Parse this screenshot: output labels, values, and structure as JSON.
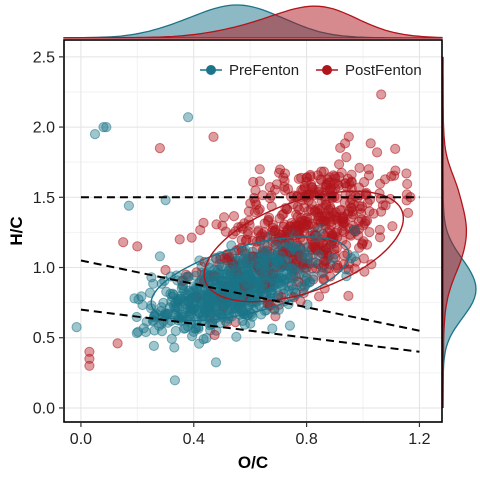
{
  "chart_data": {
    "type": "scatter",
    "xlabel": "O/C",
    "ylabel": "H/C",
    "xlim": [
      -0.06,
      1.28
    ],
    "ylim": [
      -0.1,
      2.62
    ],
    "xticks": [
      0.0,
      0.4,
      0.8,
      1.2
    ],
    "yticks": [
      0.0,
      0.5,
      1.0,
      1.5,
      2.0,
      2.5
    ],
    "x_tick_labels": [
      "0.0",
      "0.4",
      "0.8",
      "1.2"
    ],
    "y_tick_labels": [
      "0.0",
      "0.5",
      "1.0",
      "1.5",
      "2.0",
      "2.5"
    ],
    "grid": true,
    "legend_position": "top-right",
    "marginal_density": "top and right",
    "series": [
      {
        "name": "PreFenton",
        "color": "#1b7489",
        "center": [
          0.55,
          0.85
        ],
        "spread": [
          0.14,
          0.15
        ],
        "correlation": 0.55,
        "ellipse": {
          "center": [
            0.6,
            0.92
          ],
          "semi_axes": [
            0.41,
            0.21
          ],
          "angle_deg": 37
        },
        "approx_points": 700,
        "sample_points": [
          [
            0.05,
            1.95
          ],
          [
            0.08,
            2.0
          ],
          [
            0.09,
            2.0
          ],
          [
            0.38,
            2.07
          ],
          [
            0.3,
            1.48
          ],
          [
            0.17,
            1.44
          ],
          [
            0.28,
            1.08
          ],
          [
            0.25,
            0.93
          ],
          [
            0.32,
            0.62
          ],
          [
            0.45,
            0.8
          ],
          [
            0.5,
            0.9
          ],
          [
            0.55,
            1.0
          ],
          [
            0.6,
            0.85
          ],
          [
            0.52,
            0.7
          ],
          [
            0.65,
            1.1
          ],
          [
            0.7,
            1.2
          ],
          [
            0.42,
            1.05
          ],
          [
            0.48,
            0.55
          ],
          [
            0.6,
            0.6
          ],
          [
            0.72,
            0.9
          ]
        ]
      },
      {
        "name": "PostFenton",
        "color": "#b0151c",
        "center": [
          0.8,
          1.28
        ],
        "spread": [
          0.16,
          0.25
        ],
        "correlation": 0.45,
        "ellipse": {
          "center": [
            0.79,
            1.15
          ],
          "semi_axes": [
            0.46,
            0.26
          ],
          "angle_deg": 51
        },
        "approx_points": 550,
        "sample_points": [
          [
            0.03,
            0.3
          ],
          [
            0.03,
            0.35
          ],
          [
            0.03,
            0.4
          ],
          [
            0.13,
            0.46
          ],
          [
            0.28,
            1.85
          ],
          [
            0.35,
            1.2
          ],
          [
            0.15,
            1.18
          ],
          [
            0.2,
            1.15
          ],
          [
            0.47,
            1.93
          ],
          [
            1.05,
            1.82
          ],
          [
            1.1,
            1.65
          ],
          [
            0.8,
            1.5
          ],
          [
            0.9,
            1.6
          ],
          [
            0.95,
            1.4
          ],
          [
            1.0,
            1.3
          ],
          [
            0.85,
            1.2
          ],
          [
            0.75,
            1.0
          ],
          [
            0.7,
            0.8
          ],
          [
            0.65,
            1.25
          ],
          [
            1.02,
            1.7
          ]
        ]
      }
    ],
    "reference_lines": [
      {
        "style": "dashed",
        "x": [
          0.0,
          1.2
        ],
        "y": [
          1.5,
          1.5
        ]
      },
      {
        "style": "dashed",
        "x": [
          0.0,
          1.2
        ],
        "y": [
          1.05,
          0.55
        ]
      },
      {
        "style": "dashed",
        "x": [
          0.0,
          1.2
        ],
        "y": [
          0.7,
          0.4
        ]
      }
    ]
  }
}
